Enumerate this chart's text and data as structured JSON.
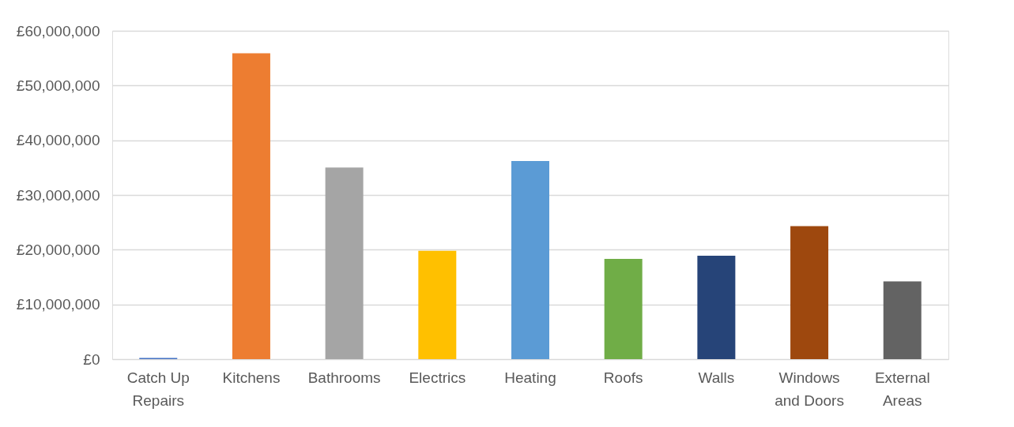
{
  "chart_data": {
    "type": "bar",
    "categories": [
      "Catch Up\nRepairs",
      "Kitchens",
      "Bathrooms",
      "Electrics",
      "Heating",
      "Roofs",
      "Walls",
      "Windows\nand Doors",
      "External\nAreas"
    ],
    "values": [
      200000,
      55900000,
      35000000,
      19800000,
      36200000,
      18300000,
      18900000,
      24300000,
      14200000
    ],
    "colors": [
      "#4472c4",
      "#ed7d31",
      "#a5a5a5",
      "#ffc000",
      "#5b9bd5",
      "#70ad47",
      "#264478",
      "#9e480e",
      "#636363"
    ],
    "ylim": [
      0,
      60000000
    ],
    "yticks": [
      {
        "value": 0,
        "label": "£0"
      },
      {
        "value": 10000000,
        "label": "£10,000,000"
      },
      {
        "value": 20000000,
        "label": "£20,000,000"
      },
      {
        "value": 30000000,
        "label": "£30,000,000"
      },
      {
        "value": 40000000,
        "label": "£40,000,000"
      },
      {
        "value": 50000000,
        "label": "£50,000,000"
      },
      {
        "value": 60000000,
        "label": "£60,000,000"
      }
    ],
    "grid": "y"
  }
}
